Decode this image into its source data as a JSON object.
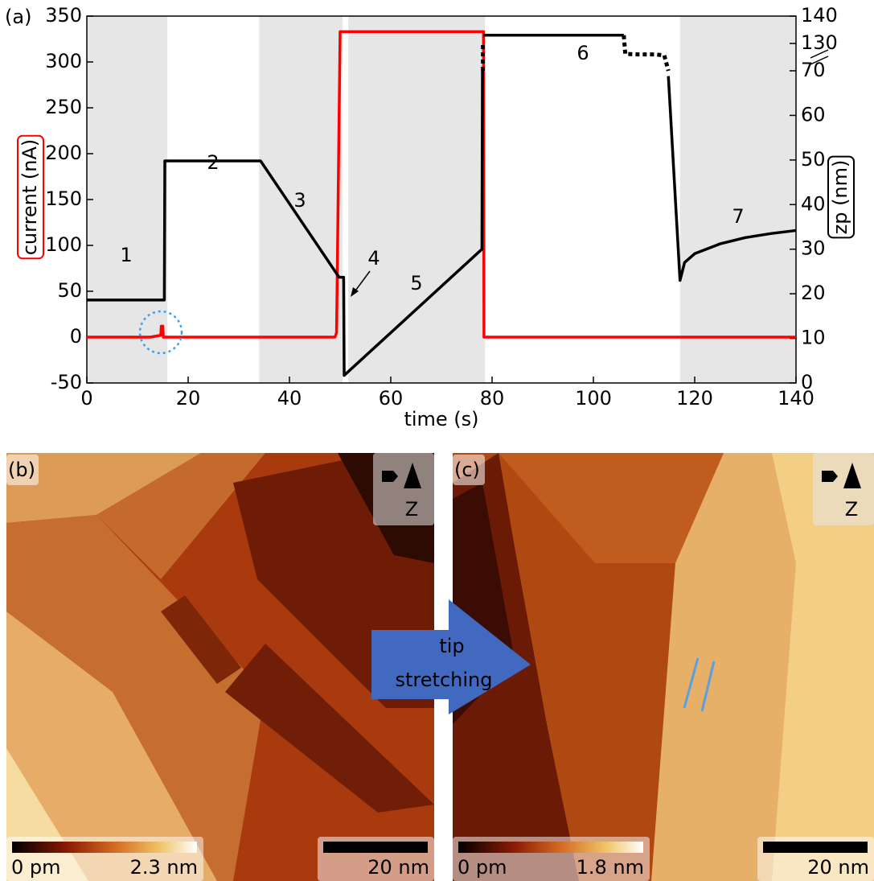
{
  "chart_data": {
    "type": "line",
    "panel_label": "(a)",
    "xlabel": "time (s)",
    "ylabel": "current (nA)",
    "y2label": "zp (nm)",
    "xlim": [
      0,
      140
    ],
    "xticks": [
      0,
      20,
      40,
      60,
      80,
      100,
      120,
      140
    ],
    "ylim": [
      -50,
      350
    ],
    "yticks": [
      -50,
      0,
      50,
      100,
      150,
      200,
      250,
      300,
      350
    ],
    "y2lim": [
      0,
      140
    ],
    "y2break": [
      70,
      130
    ],
    "y2ticks": [
      0,
      10,
      20,
      30,
      40,
      50,
      60,
      70,
      130,
      140
    ],
    "shaded_spans": [
      [
        0,
        15.9
      ],
      [
        34,
        50.5
      ],
      [
        51.6,
        78.6
      ],
      [
        117.1,
        140
      ]
    ],
    "shade_color": "#e6e6e6",
    "series": [
      {
        "color": "#ff0000",
        "axis": "y",
        "x": [
          0,
          12.5,
          14.6,
          14.7,
          15.0,
          15.1,
          49.0,
          49.3,
          50.0,
          78.3,
          78.4,
          140
        ],
        "values": [
          0,
          0,
          2,
          12,
          12,
          0,
          0,
          5,
          333,
          333,
          0,
          0
        ]
      },
      {
        "color": "#000000",
        "axis": "y2",
        "x": [
          0,
          15.3,
          15.4,
          34.3,
          49.8,
          50.7,
          50.8,
          78.0,
          78.1,
          78.2,
          78.3,
          106,
          106.1,
          114.8,
          117.1,
          118,
          120,
          125,
          130,
          135,
          140
        ],
        "values": [
          18.6,
          18.6,
          49.8,
          49.8,
          23.7,
          23.7,
          1.7,
          30,
          70,
          null,
          133,
          133,
          null,
          68.8,
          23,
          27,
          29,
          31.2,
          32.6,
          33.5,
          34.2
        ]
      },
      {
        "color": "#000000",
        "axis": "y2",
        "style": "dotted",
        "x": [
          78.2,
          78.2,
          79,
          106,
          106.3,
          109,
          112,
          114,
          114.8
        ],
        "values": [
          70,
          130,
          null,
          133,
          107,
          106,
          106,
          104,
          70
        ]
      }
    ],
    "annotations": [
      "1",
      "2",
      "3",
      "4",
      "5",
      "6",
      "7"
    ]
  },
  "arrow_text": [
    "tip",
    "stretching"
  ],
  "panels": [
    {
      "label": "(b)",
      "axis_label": "Z",
      "colorbar_min": "0 pm",
      "colorbar_max": "2.3 nm",
      "scale_bar": "20 nm"
    },
    {
      "label": "(c)",
      "axis_label": "Z",
      "colorbar_min": "0 pm",
      "colorbar_max": "1.8 nm",
      "scale_bar": "20 nm"
    }
  ]
}
